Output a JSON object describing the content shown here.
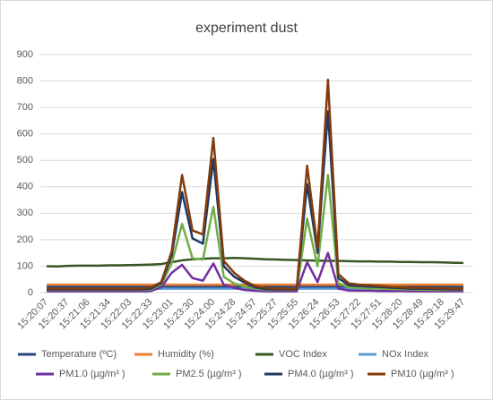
{
  "chart_data": {
    "type": "line",
    "title": "experiment dust",
    "categories": [
      "15:20:07",
      null,
      "15:20:37",
      null,
      "15:21:06",
      null,
      "15:21:34",
      null,
      "15:22:03",
      null,
      "15:22:33",
      null,
      "15:23:01",
      null,
      "15:23:30",
      null,
      "15:24:00",
      null,
      "15:24:28",
      null,
      "15:24:57",
      null,
      "15:25:27",
      null,
      "15:25:55",
      null,
      "15:26:24",
      null,
      "15:26:53",
      null,
      "15:27:22",
      null,
      "15:27:51",
      null,
      "15:28:20",
      null,
      "15:28:49",
      null,
      "15:29:18",
      null,
      "15:29:47"
    ],
    "ylim": [
      0,
      900
    ],
    "yticks": [
      0,
      100,
      200,
      300,
      400,
      500,
      600,
      700,
      800,
      900
    ],
    "grid": true,
    "series": [
      {
        "name": "Temperature (ºC)",
        "color": "#264478",
        "values": [
          22,
          22,
          22,
          22,
          22,
          22,
          22,
          22,
          22,
          22,
          22,
          22,
          22,
          22,
          22,
          22,
          22,
          22,
          22,
          22,
          22,
          22,
          22,
          22,
          22,
          22,
          22,
          22,
          22,
          22,
          22,
          22,
          22,
          22,
          22,
          22,
          22,
          22,
          22,
          22,
          22
        ]
      },
      {
        "name": "Humidity (%)",
        "color": "#ED7D31",
        "values": [
          30,
          30,
          30,
          30,
          30,
          30,
          30,
          30,
          30,
          30,
          30,
          30,
          30,
          30,
          30,
          30,
          30,
          30,
          30,
          30,
          30,
          30,
          30,
          30,
          30,
          30,
          30,
          30,
          30,
          30,
          30,
          30,
          30,
          30,
          30,
          30,
          30,
          30,
          30,
          30,
          30
        ]
      },
      {
        "name": "VOC Index",
        "color": "#375623",
        "values": [
          100,
          99,
          101,
          102,
          102,
          102,
          103,
          103,
          104,
          105,
          106,
          108,
          115,
          122,
          126,
          128,
          130,
          130,
          131,
          130,
          128,
          126,
          125,
          124,
          123,
          122,
          121,
          120,
          120,
          119,
          118,
          118,
          117,
          117,
          116,
          116,
          115,
          115,
          114,
          113,
          112
        ]
      },
      {
        "name": "NOx Index",
        "color": "#5B9BD5",
        "values": [
          15,
          15,
          15,
          15,
          15,
          15,
          15,
          15,
          15,
          15,
          15,
          15,
          15,
          15,
          15,
          15,
          15,
          15,
          15,
          15,
          15,
          15,
          15,
          15,
          15,
          15,
          15,
          15,
          15,
          15,
          15,
          15,
          15,
          15,
          15,
          15,
          15,
          15,
          15,
          15,
          15
        ]
      },
      {
        "name": "PM1.0 (µg/m³ )",
        "color": "#7030A0",
        "values": [
          5,
          5,
          5,
          5,
          5,
          5,
          5,
          5,
          5,
          5,
          6,
          20,
          75,
          105,
          55,
          45,
          110,
          30,
          18,
          10,
          7,
          5,
          5,
          5,
          5,
          115,
          40,
          150,
          15,
          8,
          7,
          7,
          6,
          6,
          6,
          5,
          5,
          5,
          5,
          5,
          5
        ]
      },
      {
        "name": "PM2.5 (µg/m³ )",
        "color": "#70AD47",
        "values": [
          10,
          10,
          10,
          10,
          10,
          10,
          10,
          10,
          10,
          10,
          12,
          30,
          110,
          260,
          130,
          125,
          325,
          60,
          35,
          22,
          15,
          10,
          10,
          10,
          10,
          280,
          100,
          445,
          35,
          20,
          18,
          16,
          15,
          14,
          13,
          12,
          11,
          10,
          10,
          10,
          10
        ]
      },
      {
        "name": "PM4.0 (µg/m³ )",
        "color": "#203864",
        "values": [
          12,
          12,
          12,
          12,
          12,
          12,
          12,
          12,
          12,
          12,
          15,
          35,
          140,
          380,
          205,
          185,
          505,
          100,
          60,
          38,
          20,
          13,
          12,
          12,
          12,
          410,
          150,
          685,
          55,
          28,
          25,
          23,
          21,
          19,
          17,
          15,
          15,
          14,
          13,
          12,
          12
        ]
      },
      {
        "name": "PM10 (µg/m³ )",
        "color": "#843C0C",
        "values": [
          15,
          15,
          15,
          15,
          15,
          15,
          15,
          15,
          15,
          15,
          20,
          40,
          155,
          445,
          235,
          220,
          585,
          120,
          75,
          45,
          25,
          18,
          15,
          15,
          15,
          480,
          170,
          805,
          70,
          35,
          30,
          28,
          25,
          22,
          20,
          18,
          18,
          17,
          16,
          15,
          15
        ]
      }
    ]
  }
}
